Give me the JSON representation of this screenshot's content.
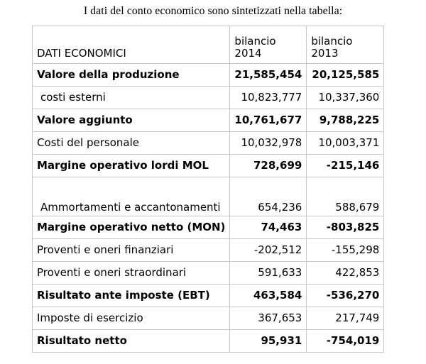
{
  "intro_text": "I dati del conto economico sono sintetizzati nella tabella:",
  "table": {
    "header": {
      "label": "DATI ECONOMICI",
      "col_2014": "bilancio 2014",
      "col_2013": "bilancio 2013"
    },
    "rows": [
      {
        "label": "Valore della produzione",
        "v2014": "21,585,454",
        "v2013": "20,125,585"
      },
      {
        "label": "costi esterni",
        "v2014": "10,823,777",
        "v2013": "10,337,360"
      },
      {
        "label": "Valore aggiunto",
        "v2014": "10,761,677",
        "v2013": "9,788,225"
      },
      {
        "label": "Costi del personale",
        "v2014": "10,032,978",
        "v2013": "10,003,371"
      },
      {
        "label": "Margine operativo lordi MOL",
        "v2014": "728,699",
        "v2013": "-215,146"
      },
      {
        "label": "Ammortamenti e accantonamenti",
        "v2014": "654,236",
        "v2013": "588,679"
      },
      {
        "label": "Margine operativo netto (MON)",
        "v2014": "74,463",
        "v2013": "-803,825"
      },
      {
        "label": "Proventi e oneri finanziari",
        "v2014": "-202,512",
        "v2013": "-155,298"
      },
      {
        "label": "Proventi e oneri straordinari",
        "v2014": "591,633",
        "v2013": "422,853"
      },
      {
        "label": "Risultato ante imposte (EBT)",
        "v2014": "463,584",
        "v2013": "-536,270"
      },
      {
        "label": "Imposte di esercizio",
        "v2014": "367,653",
        "v2013": "217,749"
      },
      {
        "label": "Risultato netto",
        "v2014": "95,931",
        "v2013": "-754,019"
      }
    ]
  }
}
